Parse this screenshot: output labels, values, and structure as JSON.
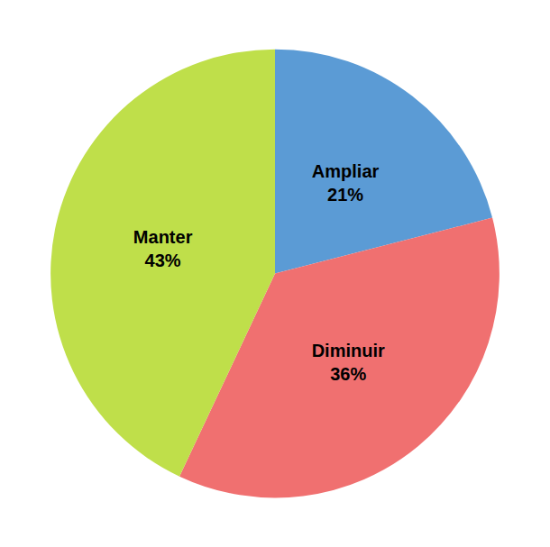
{
  "chart_data": {
    "type": "pie",
    "categories": [
      "Ampliar",
      "Diminuir",
      "Manter"
    ],
    "values": [
      21,
      36,
      43
    ],
    "value_labels": [
      "21%",
      "36%",
      "43%"
    ],
    "colors": [
      "#5B9BD5",
      "#F07070",
      "#BFDF4A"
    ],
    "data_labels": true
  }
}
